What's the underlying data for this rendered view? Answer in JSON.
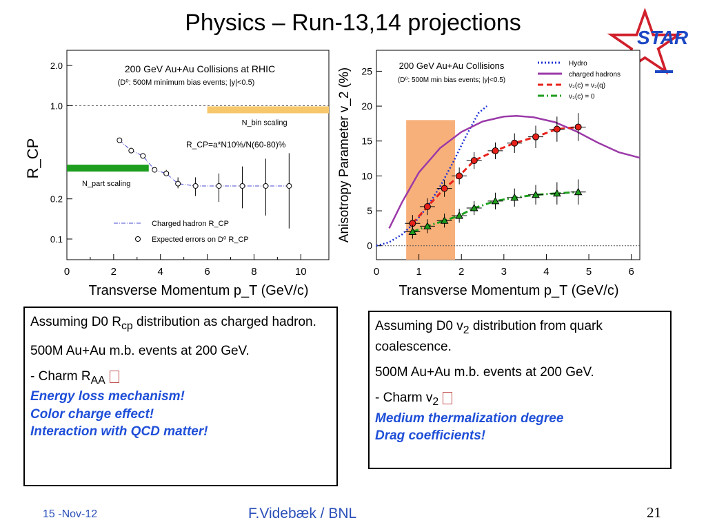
{
  "slide": {
    "title": "Physics  –  Run-13,14 projections",
    "logo_text": "STAR",
    "footer_date": "15 -Nov-12",
    "footer_author": "F.Videbæk / BNL",
    "page_number": "21"
  },
  "colors": {
    "red": "#e8221b",
    "green": "#1e9e1e",
    "hydro": "#1b2fd6",
    "purple": "#9b3aa8",
    "orange_band": "#f8b07a",
    "yellow_band": "#f7c76b",
    "blue_text": "#1f4fd8"
  },
  "left_box": {
    "line1_prefix": "Assuming D0 R",
    "line1_sub": "cp",
    "line1_suffix": " distribution as charged hadron.",
    "line2": "500M Au+Au m.b. events at 200 GeV.",
    "line3_prefix": "- Charm R",
    "line3_sub": "AA",
    "blue1": "Energy loss mechanism!",
    "blue2": "Color charge effect!",
    "blue3": "Interaction with QCD matter!"
  },
  "right_box": {
    "line1_prefix": "Assuming D0 v",
    "line1_sub": "2",
    "line1_suffix": " distribution from quark coalescence.",
    "line2": "500M Au+Au m.b. events at 200 GeV.",
    "line3_prefix": " - Charm v",
    "line3_sub": "2",
    "blue1": "Medium thermalization degree",
    "blue2": "Drag coefficients!"
  },
  "chart_data": [
    {
      "type": "scatter",
      "title": "200 GeV Au+Au Collisions at RHIC",
      "subtitle": "(D⁰: 500M minimum bias events; |y|<0.5)",
      "formula": "R_CP=a*N10%/N(60-80)%",
      "xlabel": "Transverse Momentum p_T (GeV/c)",
      "ylabel": "R_CP",
      "xlim": [
        0,
        11.2
      ],
      "ylim": [
        0.07,
        2.6
      ],
      "yscale": "log",
      "x_ticks": [
        0,
        2,
        4,
        6,
        8,
        10
      ],
      "y_ticks": [
        0.1,
        0.2,
        1.0,
        2.0
      ],
      "y_tick_labels": [
        "0.1",
        "0.2",
        "1.0",
        "2.0"
      ],
      "reference_line_y": 1.0,
      "bands": [
        {
          "label": "N_bin scaling",
          "x": [
            6.0,
            11.2
          ],
          "y": 0.93,
          "color": "#f7c76b"
        },
        {
          "label": "N_part scaling",
          "x": [
            0.0,
            3.5
          ],
          "y": 0.34,
          "color": "#1e9e1e"
        }
      ],
      "series": [
        {
          "name": "Charged hadron R_CP",
          "style": "dash-dot",
          "x": [
            2.25,
            2.75,
            3.25,
            3.75,
            4.25,
            4.75,
            5.5,
            6.5,
            7.5,
            8.5,
            9.5
          ],
          "y": [
            0.55,
            0.46,
            0.42,
            0.33,
            0.31,
            0.26,
            0.25,
            0.25,
            0.25,
            0.25,
            0.25
          ]
        },
        {
          "name": "Expected errors on D⁰ R_CP",
          "marker": "open-circle",
          "x": [
            2.25,
            2.75,
            3.25,
            3.75,
            4.25,
            4.75,
            5.5,
            6.5,
            7.5,
            8.5,
            9.5
          ],
          "y": [
            0.55,
            0.46,
            0.42,
            0.33,
            0.31,
            0.26,
            0.25,
            0.25,
            0.25,
            0.25,
            0.25
          ],
          "err_low": [
            0.54,
            0.45,
            0.41,
            0.32,
            0.3,
            0.24,
            0.21,
            0.19,
            0.17,
            0.15,
            0.12
          ],
          "err_high": [
            0.56,
            0.47,
            0.43,
            0.34,
            0.33,
            0.29,
            0.29,
            0.31,
            0.35,
            0.4,
            0.44
          ]
        }
      ],
      "legend": [
        "Charged hadron R_CP",
        "Expected errors on D⁰ R_CP"
      ],
      "legend_position": "bottom-center"
    },
    {
      "type": "scatter",
      "title": "200 GeV Au+Au Collisions",
      "subtitle": "(D⁰: 500M min bias events; |y|<0.5)",
      "xlabel": "Transverse Momentum p_T (GeV/c)",
      "ylabel": "Anisotropy Parameter v_2 (%)",
      "xlim": [
        0,
        6.2
      ],
      "ylim": [
        -2,
        28
      ],
      "x_ticks": [
        0,
        1,
        2,
        3,
        4,
        5,
        6
      ],
      "y_ticks": [
        0,
        5,
        10,
        15,
        20,
        25
      ],
      "highlight_band": {
        "x": [
          0.7,
          1.85
        ],
        "color": "#f8b07a"
      },
      "series": [
        {
          "name": "Hydro",
          "style": "dotted",
          "color": "#1b2fd6",
          "x": [
            0.0,
            0.3,
            0.6,
            0.9,
            1.2,
            1.5,
            1.8,
            2.1,
            2.4,
            2.6
          ],
          "y": [
            0.0,
            0.5,
            1.6,
            3.3,
            5.6,
            8.5,
            11.9,
            15.6,
            19.0,
            20.0
          ]
        },
        {
          "name": "charged hadrons",
          "style": "solid",
          "color": "#9b3aa8",
          "x": [
            0.3,
            0.6,
            1.0,
            1.5,
            2.0,
            2.5,
            3.0,
            3.3,
            3.7,
            4.2,
            4.7,
            5.2,
            5.7,
            6.2
          ],
          "y": [
            2.5,
            6.2,
            10.5,
            14.0,
            16.3,
            17.8,
            18.5,
            18.6,
            18.4,
            17.7,
            16.4,
            14.8,
            13.4,
            12.6
          ]
        },
        {
          "name": "v₂(c) = v₂(q)",
          "style": "dashed",
          "color": "#e8221b",
          "marker": "filled-circle",
          "x": [
            0.85,
            1.2,
            1.6,
            1.95,
            2.3,
            2.8,
            3.25,
            3.75,
            4.25,
            4.75
          ],
          "y": [
            3.2,
            5.6,
            8.2,
            10.0,
            12.2,
            13.6,
            14.7,
            15.6,
            16.7,
            17.0
          ],
          "err": [
            1.2,
            1.2,
            1.2,
            1.2,
            1.2,
            1.2,
            1.4,
            1.6,
            1.8,
            2.0
          ]
        },
        {
          "name": "v₂(c) = 0",
          "style": "dash-dot",
          "color": "#1e9e1e",
          "marker": "filled-triangle",
          "x": [
            0.85,
            1.2,
            1.6,
            1.95,
            2.3,
            2.8,
            3.25,
            3.75,
            4.25,
            4.75
          ],
          "y": [
            2.0,
            2.8,
            3.6,
            4.3,
            5.4,
            6.4,
            6.9,
            7.3,
            7.5,
            7.7
          ],
          "err": [
            1.0,
            1.0,
            1.0,
            1.0,
            1.0,
            1.2,
            1.3,
            1.4,
            1.6,
            1.8
          ]
        }
      ],
      "legend": [
        "Hydro",
        "charged hadrons",
        "v₂(c) = v₂(q)",
        "v₂(c) = 0"
      ],
      "legend_position": "top-right"
    }
  ]
}
